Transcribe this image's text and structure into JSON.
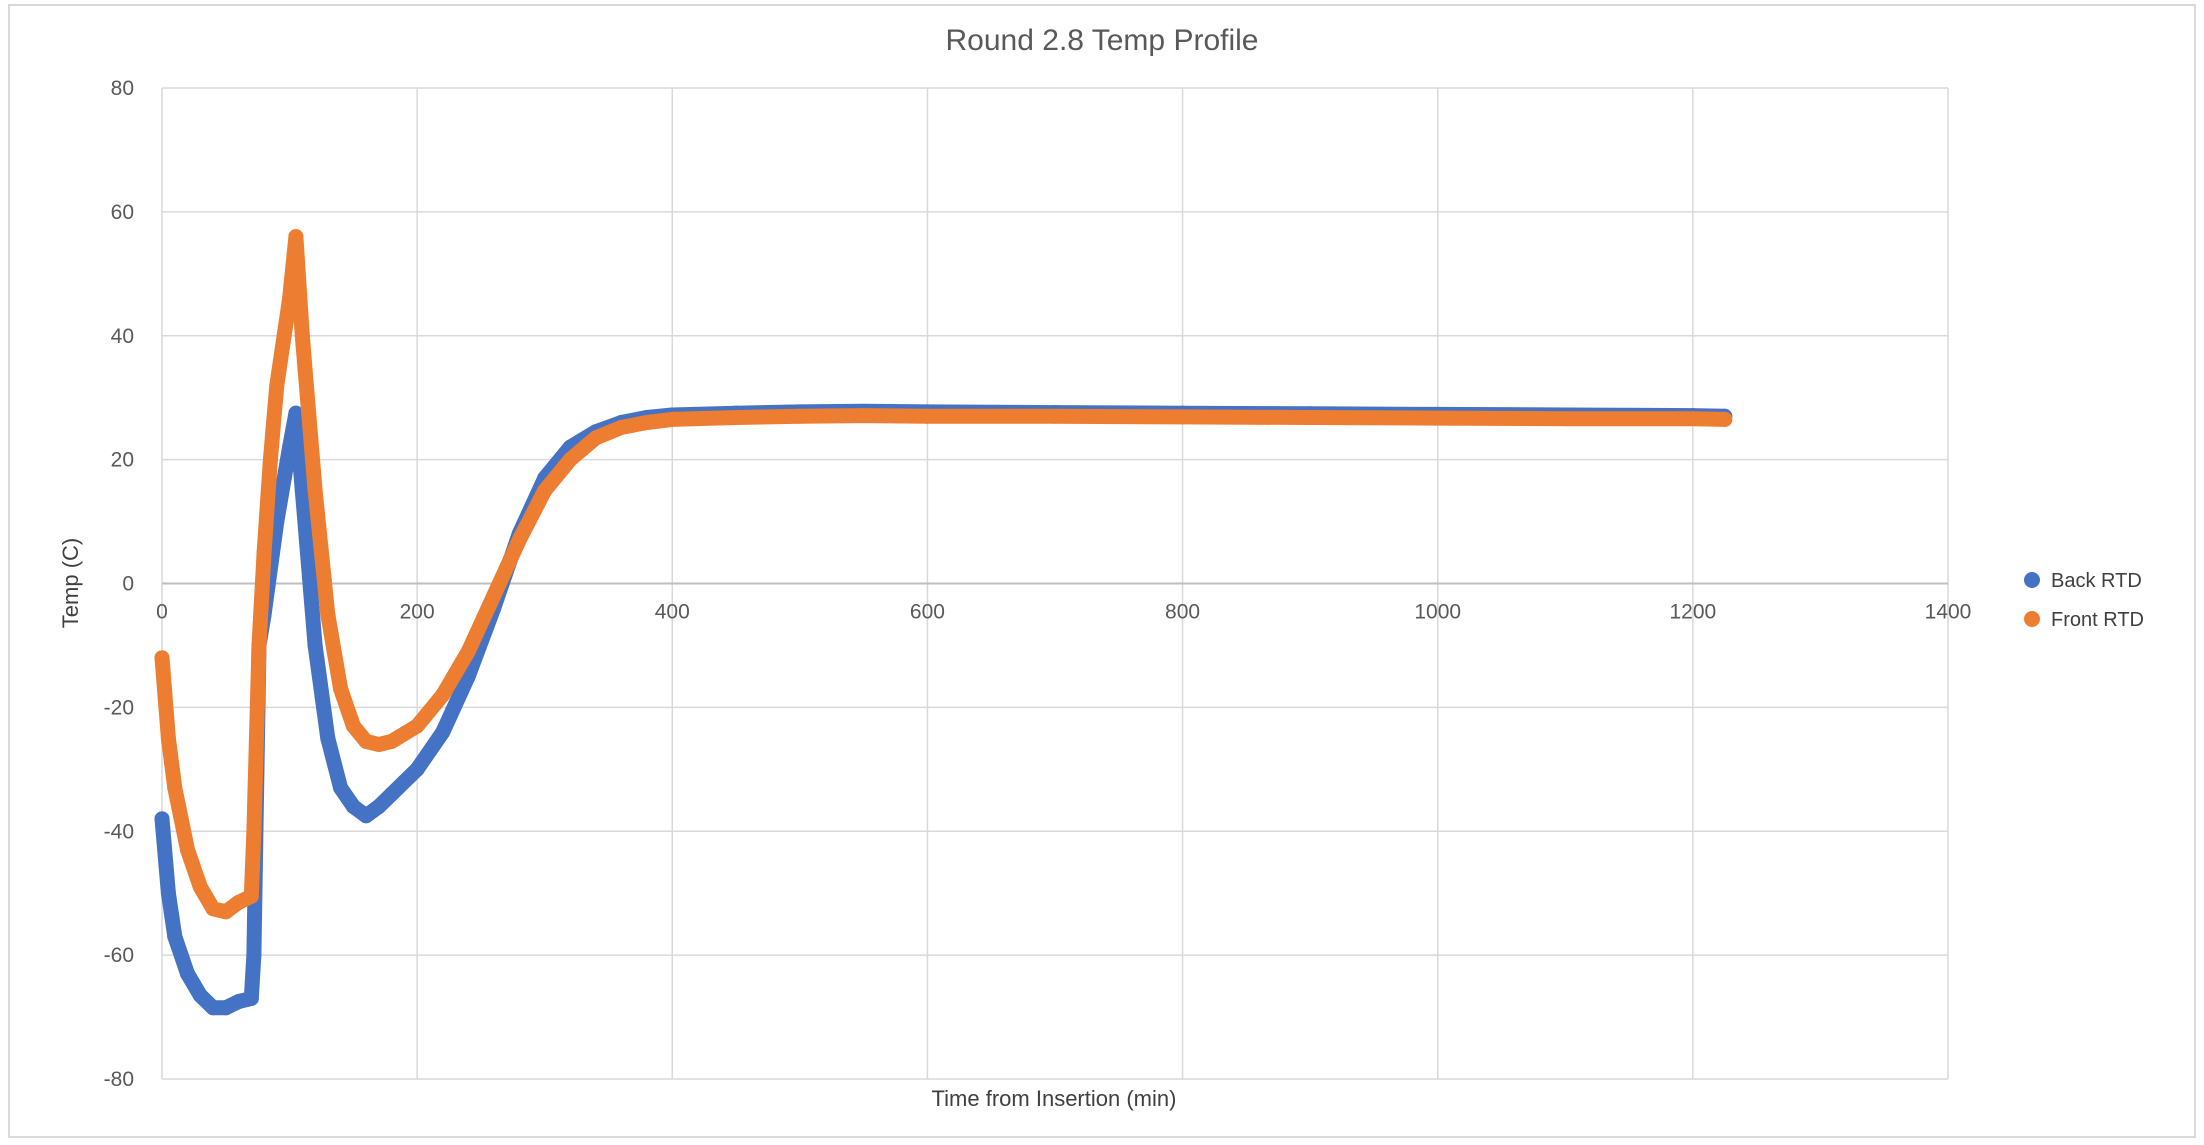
{
  "chart_data": {
    "type": "scatter",
    "title": "Round 2.8 Temp Profile",
    "xlabel": "Time from Insertion (min)",
    "ylabel": "Temp (C)",
    "xlim": [
      0,
      1400
    ],
    "ylim": [
      -80,
      80
    ],
    "x_ticks": [
      "0",
      "200",
      "400",
      "600",
      "800",
      "1000",
      "1200",
      "1400"
    ],
    "y_ticks": [
      "80",
      "60",
      "40",
      "20",
      "0",
      "-20",
      "-40",
      "-60",
      "-80"
    ],
    "grid": true,
    "legend_position": "right",
    "series": [
      {
        "name": "Back RTD",
        "color": "#4472C4",
        "points": [
          [
            0,
            -38
          ],
          [
            5,
            -50
          ],
          [
            10,
            -57
          ],
          [
            20,
            -63
          ],
          [
            30,
            -66.5
          ],
          [
            40,
            -68.5
          ],
          [
            50,
            -68.5
          ],
          [
            60,
            -67.5
          ],
          [
            70,
            -67
          ],
          [
            72,
            -60
          ],
          [
            76,
            -10
          ],
          [
            80,
            -5
          ],
          [
            90,
            10
          ],
          [
            100,
            22
          ],
          [
            105,
            27.5
          ],
          [
            110,
            15
          ],
          [
            120,
            -10
          ],
          [
            130,
            -25
          ],
          [
            140,
            -33
          ],
          [
            150,
            -36
          ],
          [
            160,
            -37.5
          ],
          [
            170,
            -36
          ],
          [
            180,
            -34
          ],
          [
            200,
            -30
          ],
          [
            220,
            -24
          ],
          [
            240,
            -15
          ],
          [
            260,
            -4
          ],
          [
            280,
            8
          ],
          [
            300,
            17
          ],
          [
            320,
            22
          ],
          [
            340,
            24.5
          ],
          [
            360,
            26
          ],
          [
            380,
            26.8
          ],
          [
            400,
            27.2
          ],
          [
            450,
            27.5
          ],
          [
            500,
            27.7
          ],
          [
            550,
            27.8
          ],
          [
            600,
            27.7
          ],
          [
            700,
            27.6
          ],
          [
            800,
            27.5
          ],
          [
            900,
            27.4
          ],
          [
            1000,
            27.3
          ],
          [
            1100,
            27.2
          ],
          [
            1200,
            27.1
          ],
          [
            1225,
            27
          ]
        ]
      },
      {
        "name": "Front RTD",
        "color": "#ED7D31",
        "points": [
          [
            0,
            -12
          ],
          [
            5,
            -25
          ],
          [
            10,
            -33
          ],
          [
            20,
            -43
          ],
          [
            30,
            -49
          ],
          [
            40,
            -52.5
          ],
          [
            50,
            -53
          ],
          [
            60,
            -51.5
          ],
          [
            70,
            -50.5
          ],
          [
            72,
            -40
          ],
          [
            76,
            -10
          ],
          [
            80,
            5
          ],
          [
            85,
            20
          ],
          [
            90,
            32
          ],
          [
            100,
            46
          ],
          [
            105,
            56
          ],
          [
            110,
            40
          ],
          [
            120,
            15
          ],
          [
            130,
            -5
          ],
          [
            140,
            -17
          ],
          [
            150,
            -23
          ],
          [
            160,
            -25.5
          ],
          [
            170,
            -26
          ],
          [
            180,
            -25.5
          ],
          [
            200,
            -23
          ],
          [
            220,
            -18
          ],
          [
            240,
            -11
          ],
          [
            260,
            -2
          ],
          [
            280,
            7
          ],
          [
            300,
            15
          ],
          [
            320,
            20
          ],
          [
            340,
            23.5
          ],
          [
            360,
            25.2
          ],
          [
            380,
            26
          ],
          [
            400,
            26.5
          ],
          [
            450,
            26.8
          ],
          [
            500,
            27
          ],
          [
            550,
            27.1
          ],
          [
            600,
            27
          ],
          [
            700,
            27
          ],
          [
            800,
            26.9
          ],
          [
            900,
            26.8
          ],
          [
            1000,
            26.7
          ],
          [
            1100,
            26.6
          ],
          [
            1200,
            26.6
          ],
          [
            1225,
            26.5
          ]
        ]
      }
    ]
  }
}
